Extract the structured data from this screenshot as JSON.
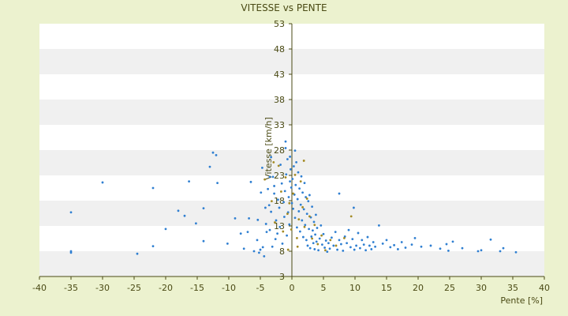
{
  "chart_data": {
    "type": "scatter",
    "title": "VITESSE vs PENTE",
    "xlabel": "Pente [%]",
    "ylabel": "Vitesse [km/h]",
    "xlim": [
      -40,
      40
    ],
    "ylim": [
      3,
      53
    ],
    "x_ticks": [
      -40,
      -35,
      -30,
      -25,
      -20,
      -15,
      -10,
      -5,
      0,
      5,
      10,
      15,
      20,
      25,
      30,
      35,
      40
    ],
    "y_ticks": [
      53,
      48,
      43,
      38,
      33,
      28,
      23,
      18,
      13,
      8,
      3
    ],
    "grid": "horizontal bands",
    "legend": "none",
    "colors": {
      "background": "#ecf2cf",
      "plot_area": "#ffffff",
      "band": "#f0f0f0",
      "axis": "#4a4a14",
      "point_primary": "#2f7fd1",
      "point_secondary": "#a38a23"
    },
    "series": [
      {
        "marker_color": "#2f7fd1",
        "points": [
          [
            -35,
            8
          ],
          [
            -24.5,
            7.5
          ],
          [
            -22,
            9
          ],
          [
            -17,
            15
          ],
          [
            -14,
            16.5
          ],
          [
            -14,
            10
          ],
          [
            -11.8,
            21.5
          ],
          [
            -10.2,
            9.5
          ],
          [
            -9,
            14.5
          ],
          [
            -8.1,
            11.5
          ],
          [
            -7.6,
            8.5
          ],
          [
            -7,
            11.8
          ],
          [
            -6.8,
            14.5
          ],
          [
            -6.5,
            21.7
          ],
          [
            -6,
            8
          ],
          [
            -5.5,
            10.2
          ],
          [
            -5.4,
            14.2
          ],
          [
            -5.2,
            7.7
          ],
          [
            -5,
            8.3
          ],
          [
            -4.9,
            19.6
          ],
          [
            -4.7,
            24.5
          ],
          [
            -4.6,
            8.8
          ],
          [
            -4.4,
            7
          ],
          [
            -4.2,
            16.6
          ],
          [
            -4.1,
            13.4
          ],
          [
            -4,
            11.8
          ],
          [
            -3.8,
            20.3
          ],
          [
            -3.6,
            17.1
          ],
          [
            -3.5,
            12.2
          ],
          [
            -3.3,
            15.8
          ],
          [
            -3.1,
            8.9
          ],
          [
            -3,
            22.7
          ],
          [
            -2.8,
            19.4
          ],
          [
            -2.6,
            10.4
          ],
          [
            -2.5,
            14.1
          ],
          [
            -2.3,
            11.5
          ],
          [
            -2.2,
            18.2
          ],
          [
            -2,
            16.6
          ],
          [
            -1.9,
            12.8
          ],
          [
            -1.8,
            25.1
          ],
          [
            -1.6,
            21.4
          ],
          [
            -1.5,
            9.5
          ],
          [
            -1.3,
            17.7
          ],
          [
            -1.2,
            14.8
          ],
          [
            -1.1,
            19.9
          ],
          [
            -0.9,
            23.2
          ],
          [
            -0.8,
            11.1
          ],
          [
            -0.7,
            26.2
          ],
          [
            -0.6,
            15.7
          ],
          [
            -0.5,
            18.7
          ],
          [
            -0.4,
            13.3
          ],
          [
            -0.3,
            21.8
          ],
          [
            -0.2,
            24.2
          ],
          [
            -0.1,
            20.6
          ],
          [
            0,
            17.5
          ],
          [
            0.1,
            22.3
          ],
          [
            0.2,
            16.4
          ],
          [
            0.3,
            24.8
          ],
          [
            0.4,
            19.2
          ],
          [
            0.5,
            14.6
          ],
          [
            0.6,
            21.1
          ],
          [
            0.7,
            25.6
          ],
          [
            0.8,
            12.7
          ],
          [
            0.9,
            18.3
          ],
          [
            1,
            23.6
          ],
          [
            1.1,
            15.9
          ],
          [
            1.2,
            20.4
          ],
          [
            1.3,
            11.9
          ],
          [
            1.4,
            17.2
          ],
          [
            1.5,
            22.8
          ],
          [
            1.6,
            14.1
          ],
          [
            1.7,
            19.6
          ],
          [
            1.8,
            10.8
          ],
          [
            1.9,
            16.3
          ],
          [
            2,
            21.5
          ],
          [
            2.1,
            13.2
          ],
          [
            2.2,
            18.7
          ],
          [
            2.3,
            10.2
          ],
          [
            2.4,
            15.4
          ],
          [
            2.5,
            9.1
          ],
          [
            2.6,
            17.9
          ],
          [
            2.7,
            12.4
          ],
          [
            2.8,
            19.1
          ],
          [
            2.9,
            8.6
          ],
          [
            3,
            14.7
          ],
          [
            3.1,
            10.9
          ],
          [
            3.2,
            16.8
          ],
          [
            3.3,
            12.1
          ],
          [
            3.4,
            9.6
          ],
          [
            3.5,
            13.8
          ],
          [
            3.6,
            8.4
          ],
          [
            3.7,
            11.3
          ],
          [
            3.8,
            15.2
          ],
          [
            3.9,
            9.9
          ],
          [
            4,
            12.6
          ],
          [
            4.2,
            8.2
          ],
          [
            4.4,
            10.5
          ],
          [
            4.6,
            13.1
          ],
          [
            4.8,
            9.3
          ],
          [
            5,
            11.4
          ],
          [
            5.2,
            8.7
          ],
          [
            5.4,
            10.1
          ],
          [
            5.6,
            7.9
          ],
          [
            5.8,
            9.6
          ],
          [
            6,
            8.5
          ],
          [
            6.3,
            10.7
          ],
          [
            6.6,
            9.1
          ],
          [
            6.9,
            11.8
          ],
          [
            7.2,
            8.3
          ],
          [
            7.5,
            10.2
          ],
          [
            7.8,
            9.4
          ],
          [
            8.1,
            8.1
          ],
          [
            8.4,
            10.9
          ],
          [
            8.7,
            9.6
          ],
          [
            9,
            12.2
          ],
          [
            9.3,
            8.8
          ],
          [
            9.6,
            10.4
          ],
          [
            9.9,
            8.3
          ],
          [
            10.2,
            9.1
          ],
          [
            10.5,
            11.6
          ],
          [
            10.8,
            8.6
          ],
          [
            11.1,
            10.2
          ],
          [
            11.4,
            9.3
          ],
          [
            11.7,
            8.2
          ],
          [
            12,
            10.8
          ],
          [
            12.3,
            9.1
          ],
          [
            12.6,
            8.4
          ],
          [
            12.9,
            9.8
          ],
          [
            13.2,
            8.9
          ],
          [
            13.8,
            13.1
          ],
          [
            14.4,
            9.5
          ],
          [
            15,
            10.2
          ],
          [
            15.6,
            8.8
          ],
          [
            16.2,
            9.2
          ],
          [
            16.8,
            8.4
          ],
          [
            17.4,
            9.8
          ],
          [
            18,
            8.7
          ],
          [
            19,
            9.3
          ],
          [
            19.5,
            10.6
          ],
          [
            20.5,
            8.9
          ],
          [
            22,
            9.1
          ],
          [
            23.5,
            8.5
          ],
          [
            24.5,
            9.4
          ],
          [
            24.8,
            8.1
          ],
          [
            25.5,
            9.9
          ],
          [
            27,
            8.6
          ],
          [
            29.5,
            8
          ],
          [
            30,
            8.2
          ],
          [
            31.5,
            10.3
          ],
          [
            33,
            8
          ],
          [
            33.5,
            8.6
          ],
          [
            35.5,
            7.8
          ],
          [
            -35,
            7.7
          ],
          [
            -30,
            21.6
          ],
          [
            -22,
            20.5
          ],
          [
            -16.3,
            21.8
          ],
          [
            -12.5,
            27.5
          ],
          [
            -12,
            27
          ],
          [
            -3.3,
            26.6
          ],
          [
            -1,
            28.4
          ],
          [
            -1,
            29.7
          ],
          [
            0.5,
            27.9
          ],
          [
            -0.3,
            26.7
          ],
          [
            7.5,
            19.4
          ],
          [
            9.8,
            16.6
          ],
          [
            -35,
            15.7
          ],
          [
            -20,
            12.4
          ],
          [
            -18,
            16
          ],
          [
            -13,
            24.7
          ],
          [
            -15.2,
            13.5
          ],
          [
            -3.5,
            22.7
          ],
          [
            -2.8,
            20.9
          ]
        ]
      },
      {
        "marker_color": "#a38a23",
        "points": [
          [
            -4.3,
            22.2
          ],
          [
            -3.2,
            17.9
          ],
          [
            -2.7,
            13.7
          ],
          [
            -2.1,
            24.9
          ],
          [
            -1.7,
            19.8
          ],
          [
            -1.4,
            11.9
          ],
          [
            -1,
            22.6
          ],
          [
            -0.7,
            15.4
          ],
          [
            -0.4,
            17.5
          ],
          [
            -0.1,
            12.3
          ],
          [
            0.2,
            19.4
          ],
          [
            0.5,
            23.1
          ],
          [
            0.8,
            10.6
          ],
          [
            1.1,
            14.3
          ],
          [
            1.4,
            21.8
          ],
          [
            1.7,
            16.7
          ],
          [
            2,
            12.8
          ],
          [
            2.4,
            18.4
          ],
          [
            2.8,
            14.9
          ],
          [
            3.2,
            10.5
          ],
          [
            3.6,
            13.2
          ],
          [
            4.1,
            9.4
          ],
          [
            4.7,
            11.1
          ],
          [
            5.3,
            8.2
          ],
          [
            6.1,
            10.2
          ],
          [
            7,
            9.1
          ],
          [
            8.3,
            10.6
          ],
          [
            9.4,
            14.9
          ],
          [
            -0.6,
            8.3
          ],
          [
            0.9,
            8.9
          ],
          [
            -2.9,
            25.6
          ],
          [
            1.9,
            25.9
          ]
        ]
      }
    ]
  }
}
